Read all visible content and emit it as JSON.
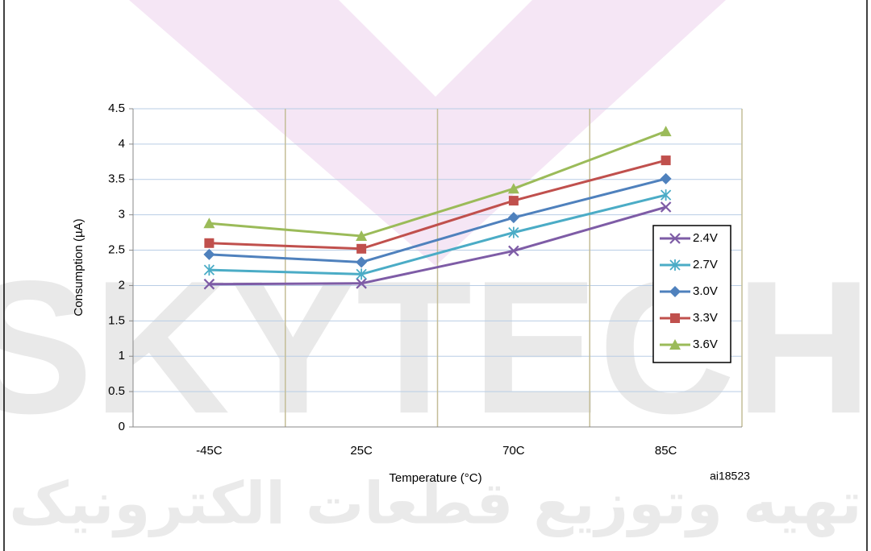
{
  "chart_data": {
    "type": "line",
    "x_label": "Temperature (°C)",
    "y_label": "Consumption (µA)",
    "annotation": "ai18523",
    "watermark": "SKYTECH",
    "watermark_subtitle": "تهیه وتوزیع قطعات الکترونیک",
    "categories": [
      "-45C",
      "25C",
      "70C",
      "85C"
    ],
    "series": [
      {
        "name": "2.4V",
        "color": "#7e5ca6",
        "marker": "x",
        "values": [
          2.02,
          2.03,
          2.49,
          3.11
        ]
      },
      {
        "name": "2.7V",
        "color": "#4bacc6",
        "marker": "star",
        "values": [
          2.22,
          2.16,
          2.75,
          3.28
        ]
      },
      {
        "name": "3.0V",
        "color": "#4f81bd",
        "marker": "diamond",
        "values": [
          2.44,
          2.33,
          2.96,
          3.51
        ]
      },
      {
        "name": "3.3V",
        "color": "#c0504d",
        "marker": "square",
        "values": [
          2.6,
          2.52,
          3.2,
          3.77
        ]
      },
      {
        "name": "3.6V",
        "color": "#9bbb59",
        "marker": "triangle",
        "values": [
          2.88,
          2.7,
          3.37,
          4.18
        ]
      }
    ],
    "ylim": [
      0,
      4.5
    ],
    "yticks": [
      0,
      0.5,
      1,
      1.5,
      2,
      2.5,
      3,
      3.5,
      4,
      4.5
    ],
    "grid": true
  }
}
